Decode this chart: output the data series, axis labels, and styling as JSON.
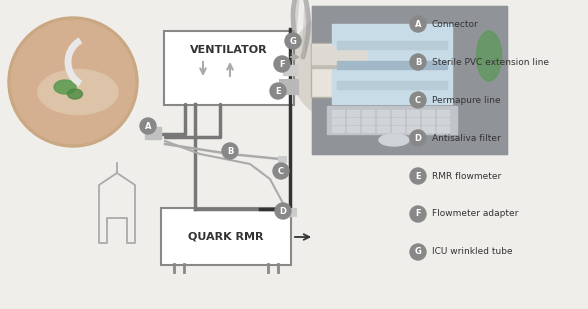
{
  "background_color": "#f0eeeb",
  "legend_items": [
    {
      "label": "A",
      "text": "Connector"
    },
    {
      "label": "B",
      "text": "Sterile PVC extension line"
    },
    {
      "label": "C",
      "text": "Permapure line"
    },
    {
      "label": "D",
      "text": "Antisaliva filter"
    },
    {
      "label": "E",
      "text": "RMR flowmeter"
    },
    {
      "label": "F",
      "text": "Flowmeter adapter"
    },
    {
      "label": "G",
      "text": "ICU wrinkled tube"
    }
  ],
  "badge_color": "#888888",
  "badge_text_color": "#ffffff",
  "legend_text_color": "#333333",
  "ventilator_text": "VENTILATOR",
  "quark_text": "QUARK RMR",
  "line_color": "#888888",
  "box_color": "#ffffff",
  "box_edge": "#888888",
  "fig_width": 5.88,
  "fig_height": 3.09,
  "dpi": 100
}
